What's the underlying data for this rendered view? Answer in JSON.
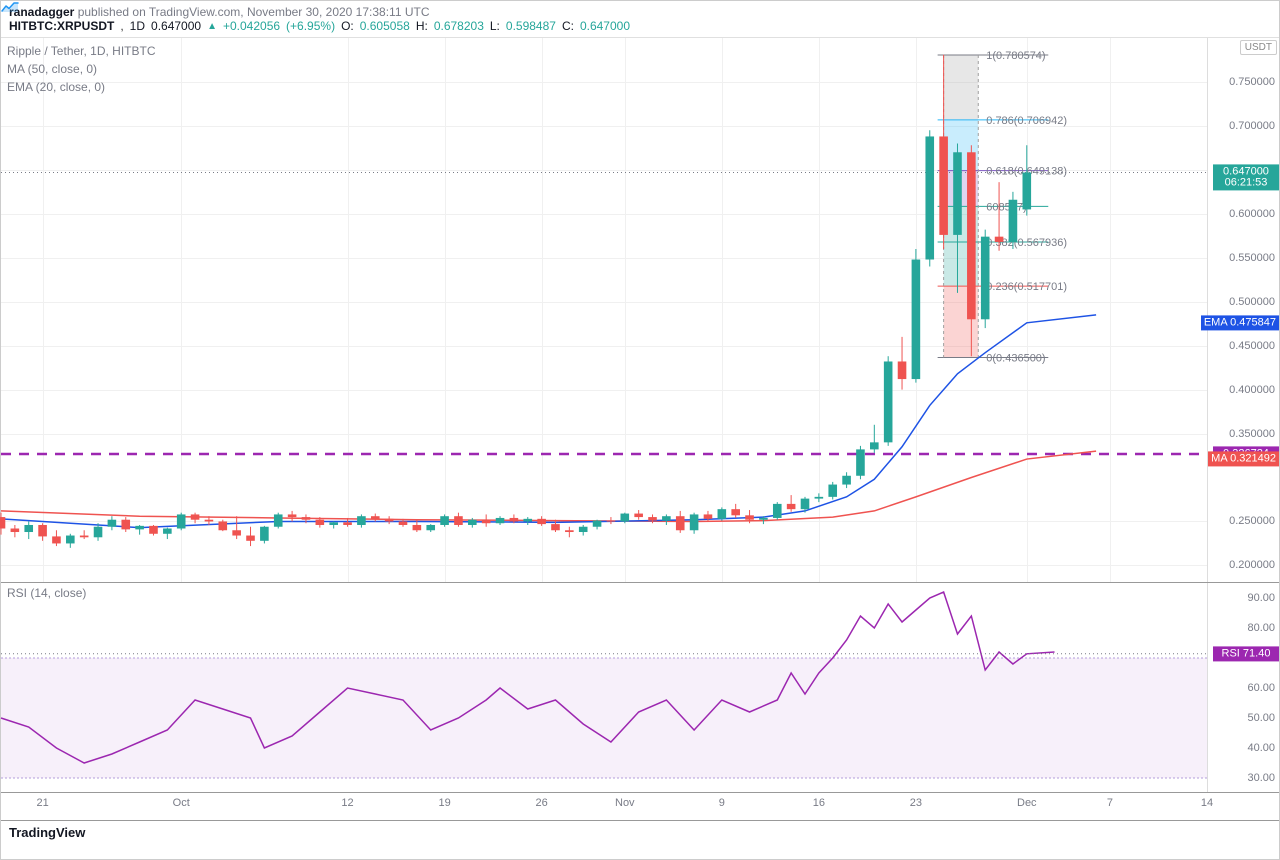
{
  "header": {
    "author": "ranadagger",
    "published_text": "published on TradingView.com,",
    "timestamp": "November 30, 2020 17:38:11 UTC",
    "symbol": "HITBTC:XRPUSDT",
    "interval": "1D",
    "last": "0.647000",
    "change_abs": "+0.042056",
    "change_pct": "(+6.95%)",
    "o_label": "O:",
    "o": "0.605058",
    "h_label": "H:",
    "h": "0.678203",
    "l_label": "L:",
    "l": "0.598487",
    "c_label": "C:",
    "c": "0.647000"
  },
  "legend": {
    "pair": "Ripple / Tether, 1D, HITBTC",
    "ma": "MA (50, close, 0)",
    "ema": "EMA (20, close, 0)"
  },
  "price_chart": {
    "ylim": [
      0.18,
      0.8
    ],
    "yticks": [
      0.2,
      0.25,
      0.35,
      0.4,
      0.45,
      0.5,
      0.55,
      0.6,
      0.65,
      0.7,
      0.75
    ],
    "axis_title": "USDT",
    "grid_color": "#f0f0f0",
    "width_days": 87,
    "candles": [
      {
        "i": 0,
        "o": 0.255,
        "h": 0.26,
        "l": 0.235,
        "c": 0.242
      },
      {
        "i": 1,
        "o": 0.242,
        "h": 0.246,
        "l": 0.232,
        "c": 0.238
      },
      {
        "i": 2,
        "o": 0.238,
        "h": 0.25,
        "l": 0.23,
        "c": 0.246
      },
      {
        "i": 3,
        "o": 0.246,
        "h": 0.248,
        "l": 0.228,
        "c": 0.233
      },
      {
        "i": 4,
        "o": 0.233,
        "h": 0.24,
        "l": 0.222,
        "c": 0.225
      },
      {
        "i": 5,
        "o": 0.225,
        "h": 0.236,
        "l": 0.22,
        "c": 0.234
      },
      {
        "i": 6,
        "o": 0.234,
        "h": 0.24,
        "l": 0.23,
        "c": 0.232
      },
      {
        "i": 7,
        "o": 0.232,
        "h": 0.248,
        "l": 0.228,
        "c": 0.244
      },
      {
        "i": 8,
        "o": 0.244,
        "h": 0.256,
        "l": 0.24,
        "c": 0.252
      },
      {
        "i": 9,
        "o": 0.252,
        "h": 0.255,
        "l": 0.238,
        "c": 0.241
      },
      {
        "i": 10,
        "o": 0.241,
        "h": 0.246,
        "l": 0.235,
        "c": 0.245
      },
      {
        "i": 11,
        "o": 0.245,
        "h": 0.246,
        "l": 0.234,
        "c": 0.236
      },
      {
        "i": 12,
        "o": 0.236,
        "h": 0.243,
        "l": 0.23,
        "c": 0.242
      },
      {
        "i": 13,
        "o": 0.242,
        "h": 0.26,
        "l": 0.24,
        "c": 0.258
      },
      {
        "i": 14,
        "o": 0.258,
        "h": 0.26,
        "l": 0.248,
        "c": 0.252
      },
      {
        "i": 15,
        "o": 0.252,
        "h": 0.256,
        "l": 0.246,
        "c": 0.25
      },
      {
        "i": 16,
        "o": 0.25,
        "h": 0.252,
        "l": 0.239,
        "c": 0.24
      },
      {
        "i": 17,
        "o": 0.24,
        "h": 0.256,
        "l": 0.23,
        "c": 0.234
      },
      {
        "i": 18,
        "o": 0.234,
        "h": 0.244,
        "l": 0.222,
        "c": 0.228
      },
      {
        "i": 19,
        "o": 0.228,
        "h": 0.245,
        "l": 0.225,
        "c": 0.244
      },
      {
        "i": 20,
        "o": 0.244,
        "h": 0.26,
        "l": 0.242,
        "c": 0.258
      },
      {
        "i": 21,
        "o": 0.258,
        "h": 0.262,
        "l": 0.25,
        "c": 0.255
      },
      {
        "i": 22,
        "o": 0.255,
        "h": 0.258,
        "l": 0.248,
        "c": 0.252
      },
      {
        "i": 23,
        "o": 0.252,
        "h": 0.255,
        "l": 0.243,
        "c": 0.246
      },
      {
        "i": 24,
        "o": 0.246,
        "h": 0.25,
        "l": 0.242,
        "c": 0.249
      },
      {
        "i": 25,
        "o": 0.249,
        "h": 0.254,
        "l": 0.244,
        "c": 0.246
      },
      {
        "i": 26,
        "o": 0.246,
        "h": 0.258,
        "l": 0.243,
        "c": 0.256
      },
      {
        "i": 27,
        "o": 0.256,
        "h": 0.259,
        "l": 0.25,
        "c": 0.253
      },
      {
        "i": 28,
        "o": 0.253,
        "h": 0.256,
        "l": 0.247,
        "c": 0.25
      },
      {
        "i": 29,
        "o": 0.25,
        "h": 0.253,
        "l": 0.244,
        "c": 0.246
      },
      {
        "i": 30,
        "o": 0.246,
        "h": 0.252,
        "l": 0.238,
        "c": 0.24
      },
      {
        "i": 31,
        "o": 0.24,
        "h": 0.247,
        "l": 0.238,
        "c": 0.246
      },
      {
        "i": 32,
        "o": 0.246,
        "h": 0.258,
        "l": 0.244,
        "c": 0.256
      },
      {
        "i": 33,
        "o": 0.256,
        "h": 0.26,
        "l": 0.244,
        "c": 0.246
      },
      {
        "i": 34,
        "o": 0.246,
        "h": 0.254,
        "l": 0.243,
        "c": 0.252
      },
      {
        "i": 35,
        "o": 0.252,
        "h": 0.258,
        "l": 0.244,
        "c": 0.248
      },
      {
        "i": 36,
        "o": 0.248,
        "h": 0.256,
        "l": 0.246,
        "c": 0.254
      },
      {
        "i": 37,
        "o": 0.254,
        "h": 0.258,
        "l": 0.248,
        "c": 0.25
      },
      {
        "i": 38,
        "o": 0.25,
        "h": 0.255,
        "l": 0.246,
        "c": 0.253
      },
      {
        "i": 39,
        "o": 0.253,
        "h": 0.256,
        "l": 0.245,
        "c": 0.247
      },
      {
        "i": 40,
        "o": 0.247,
        "h": 0.252,
        "l": 0.238,
        "c": 0.24
      },
      {
        "i": 41,
        "o": 0.24,
        "h": 0.244,
        "l": 0.232,
        "c": 0.238
      },
      {
        "i": 42,
        "o": 0.238,
        "h": 0.246,
        "l": 0.234,
        "c": 0.244
      },
      {
        "i": 43,
        "o": 0.244,
        "h": 0.252,
        "l": 0.241,
        "c": 0.251
      },
      {
        "i": 44,
        "o": 0.251,
        "h": 0.255,
        "l": 0.247,
        "c": 0.25
      },
      {
        "i": 45,
        "o": 0.25,
        "h": 0.26,
        "l": 0.248,
        "c": 0.259
      },
      {
        "i": 46,
        "o": 0.259,
        "h": 0.263,
        "l": 0.252,
        "c": 0.255
      },
      {
        "i": 47,
        "o": 0.255,
        "h": 0.258,
        "l": 0.248,
        "c": 0.251
      },
      {
        "i": 48,
        "o": 0.251,
        "h": 0.258,
        "l": 0.246,
        "c": 0.256
      },
      {
        "i": 49,
        "o": 0.256,
        "h": 0.262,
        "l": 0.237,
        "c": 0.24
      },
      {
        "i": 50,
        "o": 0.24,
        "h": 0.26,
        "l": 0.236,
        "c": 0.258
      },
      {
        "i": 51,
        "o": 0.258,
        "h": 0.262,
        "l": 0.25,
        "c": 0.253
      },
      {
        "i": 52,
        "o": 0.253,
        "h": 0.266,
        "l": 0.251,
        "c": 0.264
      },
      {
        "i": 53,
        "o": 0.264,
        "h": 0.27,
        "l": 0.254,
        "c": 0.257
      },
      {
        "i": 54,
        "o": 0.257,
        "h": 0.263,
        "l": 0.248,
        "c": 0.252
      },
      {
        "i": 55,
        "o": 0.252,
        "h": 0.256,
        "l": 0.247,
        "c": 0.254
      },
      {
        "i": 56,
        "o": 0.254,
        "h": 0.272,
        "l": 0.252,
        "c": 0.27
      },
      {
        "i": 57,
        "o": 0.27,
        "h": 0.28,
        "l": 0.261,
        "c": 0.264
      },
      {
        "i": 58,
        "o": 0.264,
        "h": 0.278,
        "l": 0.26,
        "c": 0.276
      },
      {
        "i": 59,
        "o": 0.276,
        "h": 0.282,
        "l": 0.272,
        "c": 0.278
      },
      {
        "i": 60,
        "o": 0.278,
        "h": 0.295,
        "l": 0.275,
        "c": 0.292
      },
      {
        "i": 61,
        "o": 0.292,
        "h": 0.306,
        "l": 0.288,
        "c": 0.302
      },
      {
        "i": 62,
        "o": 0.302,
        "h": 0.336,
        "l": 0.298,
        "c": 0.332
      },
      {
        "i": 63,
        "o": 0.332,
        "h": 0.36,
        "l": 0.328,
        "c": 0.34
      },
      {
        "i": 64,
        "o": 0.34,
        "h": 0.438,
        "l": 0.336,
        "c": 0.432
      },
      {
        "i": 65,
        "o": 0.432,
        "h": 0.46,
        "l": 0.4,
        "c": 0.412
      },
      {
        "i": 66,
        "o": 0.412,
        "h": 0.56,
        "l": 0.408,
        "c": 0.548
      },
      {
        "i": 67,
        "o": 0.548,
        "h": 0.695,
        "l": 0.54,
        "c": 0.688
      },
      {
        "i": 68,
        "o": 0.688,
        "h": 0.781,
        "l": 0.56,
        "c": 0.576
      },
      {
        "i": 69,
        "o": 0.576,
        "h": 0.68,
        "l": 0.51,
        "c": 0.67
      },
      {
        "i": 70,
        "o": 0.67,
        "h": 0.678,
        "l": 0.438,
        "c": 0.48
      },
      {
        "i": 71,
        "o": 0.48,
        "h": 0.582,
        "l": 0.47,
        "c": 0.574
      },
      {
        "i": 72,
        "o": 0.574,
        "h": 0.636,
        "l": 0.558,
        "c": 0.568
      },
      {
        "i": 73,
        "o": 0.568,
        "h": 0.625,
        "l": 0.56,
        "c": 0.616
      },
      {
        "i": 74,
        "o": 0.605,
        "h": 0.678,
        "l": 0.598,
        "c": 0.647
      }
    ],
    "ma50": {
      "color": "#ef5350",
      "width": 1.5,
      "points": [
        [
          0,
          0.262
        ],
        [
          10,
          0.256
        ],
        [
          20,
          0.254
        ],
        [
          30,
          0.252
        ],
        [
          40,
          0.251
        ],
        [
          50,
          0.25
        ],
        [
          55,
          0.251
        ],
        [
          60,
          0.255
        ],
        [
          63,
          0.262
        ],
        [
          66,
          0.278
        ],
        [
          70,
          0.3
        ],
        [
          74,
          0.321
        ],
        [
          79,
          0.33
        ]
      ]
    },
    "ema20": {
      "color": "#1e53e5",
      "width": 1.5,
      "points": [
        [
          0,
          0.253
        ],
        [
          10,
          0.243
        ],
        [
          20,
          0.25
        ],
        [
          30,
          0.25
        ],
        [
          40,
          0.249
        ],
        [
          50,
          0.252
        ],
        [
          55,
          0.255
        ],
        [
          58,
          0.262
        ],
        [
          61,
          0.278
        ],
        [
          63,
          0.298
        ],
        [
          65,
          0.335
        ],
        [
          67,
          0.382
        ],
        [
          69,
          0.418
        ],
        [
          71,
          0.442
        ],
        [
          74,
          0.476
        ],
        [
          79,
          0.485
        ]
      ]
    },
    "dotted_level": 0.647,
    "dashed_level": {
      "value": 0.326724,
      "color": "#9c27b0"
    },
    "price_tags": [
      {
        "val": "0.647000",
        "bg": "#26a69a",
        "y": 0.647
      },
      {
        "val": "06:21:53",
        "bg": "#26a69a",
        "y": 0.635,
        "small": true
      },
      {
        "val": "0.475847",
        "bg": "#1e53e5",
        "y": 0.4758,
        "prefix": "EMA"
      },
      {
        "val": "0.326724",
        "bg": "#9c27b0",
        "y": 0.3267
      },
      {
        "val": "0.321492",
        "bg": "#ef5350",
        "y": 0.3215,
        "prefix": "MA"
      }
    ],
    "fib": {
      "x_start": 68,
      "x_end": 70.5,
      "levels": [
        {
          "r": 0,
          "v": 0.4365,
          "label": "0(0.436500)",
          "color": "#787b86"
        },
        {
          "r": 0.236,
          "v": 0.5177,
          "label": "0.236(0.517701)",
          "color": "#ef5350",
          "fill": "#ef5350"
        },
        {
          "r": 0.382,
          "v": 0.5679,
          "label": "0.382(0.567936)",
          "color": "#26a69a",
          "fill": "#26a69a"
        },
        {
          "r": 0.5,
          "v": 0.6085,
          "label": "608537)",
          "color": "#26a69a",
          "fill": "#26a69a"
        },
        {
          "r": 0.618,
          "v": 0.6491,
          "label": "0.618(0.649138)",
          "color": "#7e57c2",
          "fill": "#7e57c2"
        },
        {
          "r": 0.786,
          "v": 0.7069,
          "label": "0.786(0.706942)",
          "color": "#29b6f6",
          "fill": "#29b6f6"
        },
        {
          "r": 1,
          "v": 0.7806,
          "label": "1(0.780574)",
          "color": "#787b86",
          "fill": "#9e9e9e"
        }
      ]
    }
  },
  "rsi": {
    "legend": "RSI (14, close)",
    "ylim": [
      25,
      95
    ],
    "yticks": [
      30,
      40,
      50,
      60,
      70,
      80,
      90
    ],
    "band": [
      30,
      70
    ],
    "value": 71.4,
    "tag": {
      "bg": "#9c27b0",
      "prefix": "RSI",
      "val": "71.40"
    },
    "points": [
      [
        0,
        50
      ],
      [
        2,
        47
      ],
      [
        4,
        40
      ],
      [
        6,
        35
      ],
      [
        8,
        38
      ],
      [
        10,
        42
      ],
      [
        12,
        46
      ],
      [
        14,
        56
      ],
      [
        16,
        53
      ],
      [
        18,
        50
      ],
      [
        19,
        40
      ],
      [
        21,
        44
      ],
      [
        23,
        52
      ],
      [
        25,
        60
      ],
      [
        27,
        58
      ],
      [
        29,
        56
      ],
      [
        31,
        46
      ],
      [
        33,
        50
      ],
      [
        35,
        56
      ],
      [
        36,
        60
      ],
      [
        38,
        53
      ],
      [
        40,
        56
      ],
      [
        42,
        48
      ],
      [
        44,
        42
      ],
      [
        46,
        52
      ],
      [
        48,
        56
      ],
      [
        50,
        46
      ],
      [
        52,
        56
      ],
      [
        54,
        52
      ],
      [
        56,
        56
      ],
      [
        57,
        65
      ],
      [
        58,
        58
      ],
      [
        59,
        65
      ],
      [
        60,
        70
      ],
      [
        61,
        76
      ],
      [
        62,
        84
      ],
      [
        63,
        80
      ],
      [
        64,
        88
      ],
      [
        65,
        82
      ],
      [
        66,
        86
      ],
      [
        67,
        90
      ],
      [
        68,
        92
      ],
      [
        69,
        78
      ],
      [
        70,
        84
      ],
      [
        71,
        66
      ],
      [
        72,
        72
      ],
      [
        73,
        68
      ],
      [
        74,
        71.4
      ],
      [
        76,
        72
      ]
    ]
  },
  "x_axis": {
    "ticks": [
      {
        "i": 3,
        "label": "21"
      },
      {
        "i": 13,
        "label": "Oct"
      },
      {
        "i": 25,
        "label": "12"
      },
      {
        "i": 32,
        "label": "19"
      },
      {
        "i": 39,
        "label": "26"
      },
      {
        "i": 45,
        "label": "Nov"
      },
      {
        "i": 52,
        "label": "9"
      },
      {
        "i": 59,
        "label": "16"
      },
      {
        "i": 66,
        "label": "23"
      },
      {
        "i": 74,
        "label": "Dec"
      },
      {
        "i": 80,
        "label": "7"
      },
      {
        "i": 87,
        "label": "14"
      }
    ]
  },
  "footer": {
    "brand": "TradingView"
  }
}
